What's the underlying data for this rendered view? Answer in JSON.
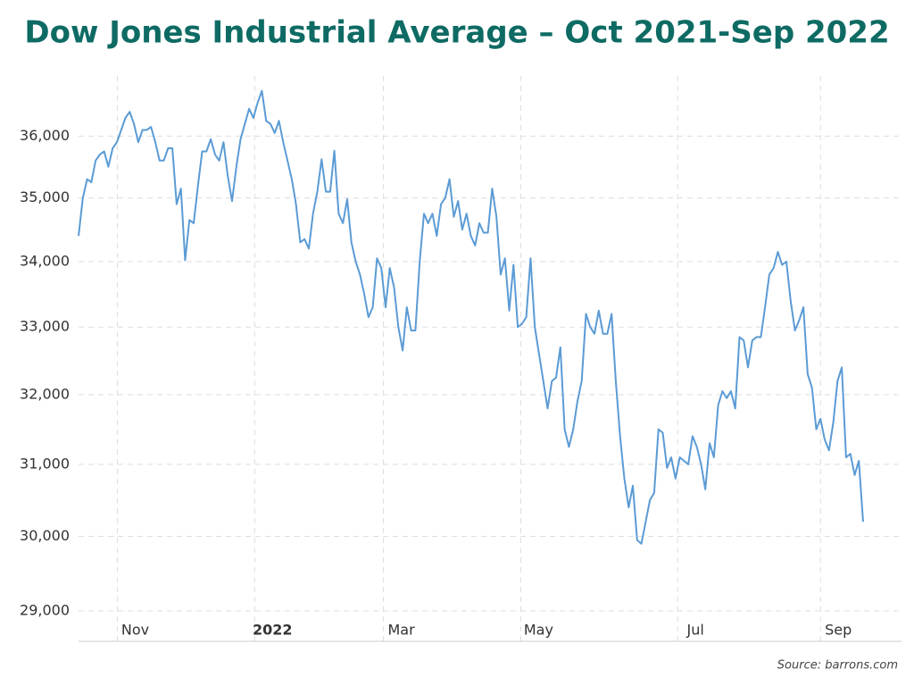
{
  "chart_data": {
    "type": "line",
    "title": "Dow Jones Industrial Average – Oct 2021-Sep 2022",
    "source": "Source: barrons.com",
    "log_scale": true,
    "grid": true,
    "series": [
      {
        "name": "Dow Jones Industrial Average",
        "color": "#5b9bd5",
        "values": [
          34400,
          35000,
          35300,
          35250,
          35600,
          35700,
          35750,
          35500,
          35800,
          35900,
          36100,
          36300,
          36400,
          36200,
          35900,
          36100,
          36100,
          36150,
          35900,
          35600,
          35600,
          35800,
          35800,
          34900,
          35150,
          34020,
          34650,
          34600,
          35200,
          35750,
          35750,
          35950,
          35700,
          35600,
          35900,
          35350,
          34950,
          35500,
          35950,
          36200,
          36450,
          36300,
          36550,
          36750,
          36250,
          36200,
          36050,
          36250,
          35900,
          35600,
          35300,
          34900,
          34300,
          34350,
          34200,
          34750,
          35100,
          35620,
          35100,
          35100,
          35760,
          34750,
          34600,
          34980,
          34300,
          34000,
          33800,
          33500,
          33150,
          33300,
          34050,
          33900,
          33300,
          33900,
          33600,
          33000,
          32650,
          33300,
          32950,
          32950,
          34000,
          34750,
          34600,
          34750,
          34400,
          34900,
          35000,
          35300,
          34700,
          34950,
          34500,
          34750,
          34400,
          34250,
          34600,
          34450,
          34450,
          35150,
          34700,
          33800,
          34050,
          33250,
          33950,
          33000,
          33050,
          33150,
          34050,
          33000,
          32600,
          32200,
          31800,
          32200,
          32250,
          32700,
          31500,
          31250,
          31500,
          31900,
          32200,
          33200,
          33000,
          32900,
          33250,
          32900,
          32900,
          33200,
          32200,
          31400,
          30800,
          30400,
          30700,
          29950,
          29900,
          30200,
          30500,
          30600,
          31500,
          31450,
          30950,
          31100,
          30800,
          31100,
          31050,
          31000,
          31400,
          31250,
          31000,
          30650,
          31300,
          31100,
          31850,
          32050,
          31950,
          32050,
          31800,
          32850,
          32800,
          32400,
          32800,
          32850,
          32850,
          33300,
          33800,
          33900,
          34150,
          33950,
          34000,
          33400,
          32950,
          33100,
          33300,
          32300,
          32100,
          31500,
          31650,
          31350,
          31200,
          31600,
          32200,
          32400,
          31100,
          31150,
          30850,
          31050,
          30200
        ]
      }
    ],
    "xlim": [
      0,
      193
    ],
    "xticks": [
      {
        "value": 9.1,
        "label": "Nov"
      },
      {
        "value": 41.3,
        "label": "2022",
        "bold": true
      },
      {
        "value": 71.5,
        "label": "Mar"
      },
      {
        "value": 103.7,
        "label": "May"
      },
      {
        "value": 140.5,
        "label": "Jul"
      },
      {
        "value": 174,
        "label": "Sep"
      }
    ],
    "ylim": [
      28600,
      37000
    ],
    "yticks": [
      {
        "value": 29000,
        "label": "29,000"
      },
      {
        "value": 30000,
        "label": "30,000"
      },
      {
        "value": 31000,
        "label": "31,000"
      },
      {
        "value": 32000,
        "label": "32,000"
      },
      {
        "value": 33000,
        "label": "33,000"
      },
      {
        "value": 34000,
        "label": "34,000"
      },
      {
        "value": 35000,
        "label": "35,000"
      },
      {
        "value": 36000,
        "label": "36,000"
      }
    ]
  }
}
